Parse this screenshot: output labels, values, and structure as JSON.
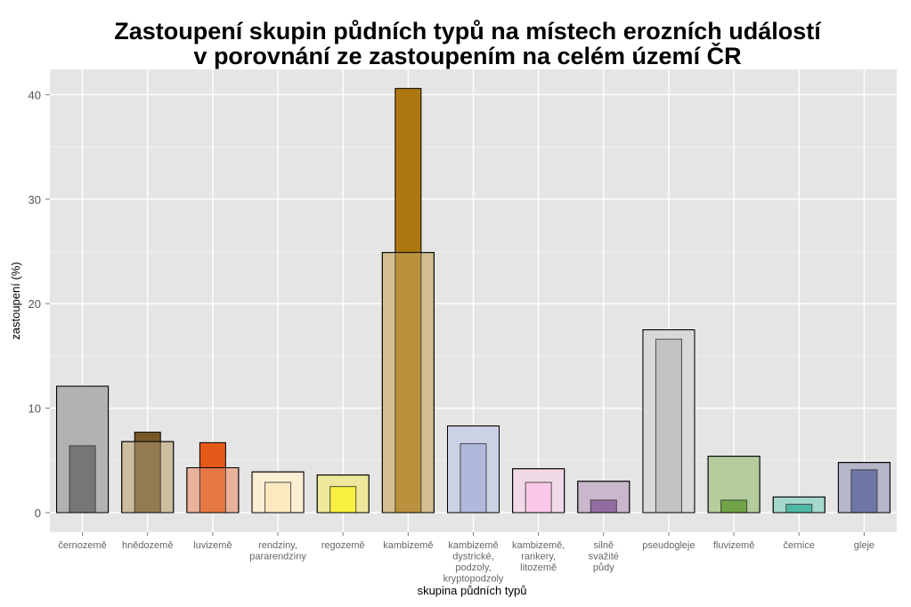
{
  "chart_data": {
    "type": "bar",
    "title": [
      "Zastoupení skupin půdních typů na místech erozních událostí",
      "v porovnání ze zastoupením na celém území ČR"
    ],
    "xlabel": "skupina půdních typů",
    "ylabel": "zastoupení (%)",
    "ylim": [
      0,
      45
    ],
    "yticks": [
      0,
      10,
      20,
      30,
      40
    ],
    "grid": true,
    "categories": [
      [
        "černozemě"
      ],
      [
        "hnědozemě"
      ],
      [
        "luvizemě"
      ],
      [
        "rendziny,",
        "pararendziny"
      ],
      [
        "regozemě"
      ],
      [
        "kambizemě"
      ],
      [
        "kambizemě",
        "dystrické,",
        "podzoly,",
        "kryptopodzoly"
      ],
      [
        "kambizemě,",
        "rankery,",
        "litozemě"
      ],
      [
        "silně",
        "svažité",
        "půdy"
      ],
      [
        "pseudogleje"
      ],
      [
        "fluvizemě"
      ],
      [
        "černice"
      ],
      [
        "gleje"
      ]
    ],
    "series": [
      {
        "values": [
          12.1,
          6.8,
          4.3,
          3.9,
          3.6,
          24.9,
          8.3,
          4.2,
          3.0,
          17.5,
          5.4,
          1.5,
          4.8
        ],
        "colors": [
          "#b3b3b3",
          "#cbbd9f",
          "#e8b29c",
          "#fbefd3",
          "#ede89c",
          "#d5bf92",
          "#cdd1e6",
          "#f1d9e7",
          "#c9b7cb",
          "#d9d9d9",
          "#b5cd9f",
          "#a5d7cb",
          "#b5b7c8"
        ]
      },
      {
        "values": [
          6.4,
          7.7,
          6.7,
          2.9,
          2.5,
          40.6,
          6.6,
          2.9,
          1.2,
          16.6,
          1.2,
          0.8,
          4.1
        ],
        "colors": [
          "#565656",
          "#765727",
          "#e55a18",
          "#fde6b6",
          "#fcf40f",
          "#ae7810",
          "#a0abd8",
          "#fdbde6",
          "#75458f",
          "#b6b6b6",
          "#4d8c1a",
          "#21a88c",
          "#4c5492"
        ]
      }
    ]
  }
}
